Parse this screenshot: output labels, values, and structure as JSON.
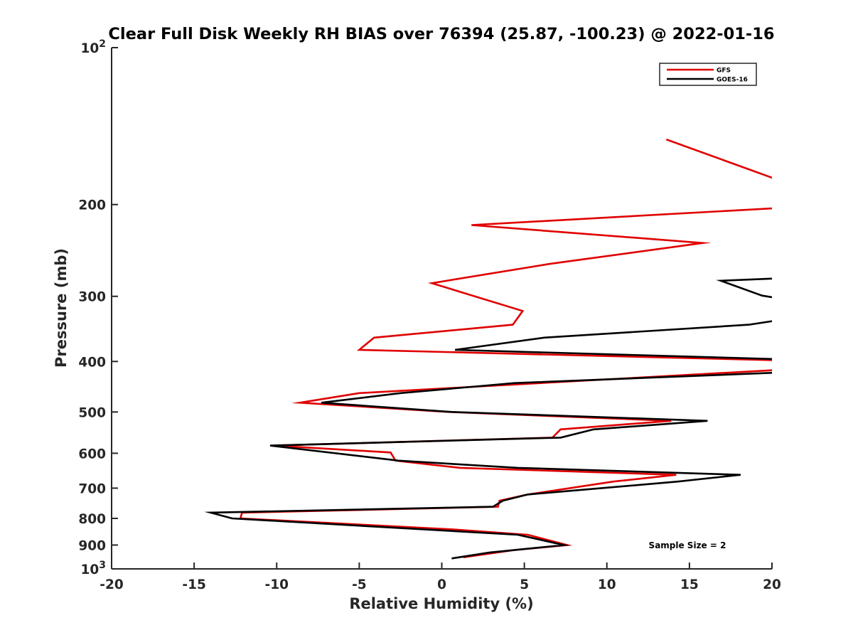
{
  "chart_data": {
    "type": "line",
    "title": "Clear Full Disk Weekly RH BIAS over 76394 (25.87, -100.23) @ 2022-01-16",
    "xlabel": "Relative Humidity (%)",
    "ylabel": "Pressure (mb)",
    "xlim": [
      -20,
      20
    ],
    "ylim": [
      100,
      1000
    ],
    "y_scale": "log",
    "y_reversed": true,
    "x_ticks": [
      "-20",
      "-15",
      "-10",
      "-5",
      "0",
      "5",
      "10",
      "15",
      "20"
    ],
    "y_ticks": [
      {
        "value": 100,
        "base": "10",
        "exp": "2"
      },
      {
        "value": 200,
        "label": "200"
      },
      {
        "value": 300,
        "label": "300"
      },
      {
        "value": 400,
        "label": "400"
      },
      {
        "value": 500,
        "label": "500"
      },
      {
        "value": 600,
        "label": "600"
      },
      {
        "value": 700,
        "label": "700"
      },
      {
        "value": 800,
        "label": "800"
      },
      {
        "value": 900,
        "label": "900"
      },
      {
        "value": 1000,
        "base": "10",
        "exp": "3"
      }
    ],
    "grid": false,
    "legend_position": "top-right",
    "annotation": "Sample Size = 2",
    "series": [
      {
        "name": "GFS",
        "color": "#e00000",
        "points": [
          [
            13.6,
            150
          ],
          [
            20.5,
            180
          ],
          [
            20.5,
            203
          ],
          [
            1.8,
            219
          ],
          [
            15.8,
            237
          ],
          [
            6.5,
            260
          ],
          [
            -0.6,
            283
          ],
          [
            2.0,
            300
          ],
          [
            4.9,
            320
          ],
          [
            4.3,
            340
          ],
          [
            -4.1,
            360
          ],
          [
            -5.0,
            380
          ],
          [
            20.5,
            398
          ],
          [
            20.5,
            415
          ],
          [
            -5.0,
            460
          ],
          [
            -8.6,
            480
          ],
          [
            0.4,
            500
          ],
          [
            13.9,
            520
          ],
          [
            7.2,
            540
          ],
          [
            6.7,
            560
          ],
          [
            -10.2,
            580
          ],
          [
            -3.1,
            598
          ],
          [
            -2.8,
            620
          ],
          [
            1.1,
            640
          ],
          [
            14.2,
            660
          ],
          [
            10.4,
            680
          ],
          [
            5.2,
            720
          ],
          [
            3.5,
            740
          ],
          [
            3.4,
            760
          ],
          [
            -12.1,
            780
          ],
          [
            -12.2,
            800
          ],
          [
            0.7,
            840
          ],
          [
            5.2,
            860
          ],
          [
            7.6,
            900
          ],
          [
            4.4,
            920
          ],
          [
            1.3,
            950
          ]
        ]
      },
      {
        "name": "GOES-16",
        "color": "#000000",
        "points": [
          [
            20.5,
            277
          ],
          [
            16.9,
            280
          ],
          [
            19.4,
            299
          ],
          [
            20.5,
            303
          ],
          [
            20.5,
            333
          ],
          [
            18.6,
            340
          ],
          [
            6.2,
            360
          ],
          [
            0.8,
            380
          ],
          [
            20.5,
            396
          ],
          [
            20.5,
            420
          ],
          [
            4.4,
            440
          ],
          [
            -2.5,
            460
          ],
          [
            -7.3,
            480
          ],
          [
            0.6,
            500
          ],
          [
            16.1,
            520
          ],
          [
            9.2,
            540
          ],
          [
            7.2,
            560
          ],
          [
            -10.4,
            580
          ],
          [
            -2.6,
            620
          ],
          [
            4.6,
            640
          ],
          [
            18.1,
            660
          ],
          [
            14.3,
            680
          ],
          [
            5.2,
            720
          ],
          [
            3.7,
            740
          ],
          [
            3.1,
            760
          ],
          [
            -14.0,
            780
          ],
          [
            -12.7,
            800
          ],
          [
            4.6,
            860
          ],
          [
            7.4,
            900
          ],
          [
            2.9,
            930
          ],
          [
            0.6,
            955
          ]
        ]
      }
    ]
  }
}
